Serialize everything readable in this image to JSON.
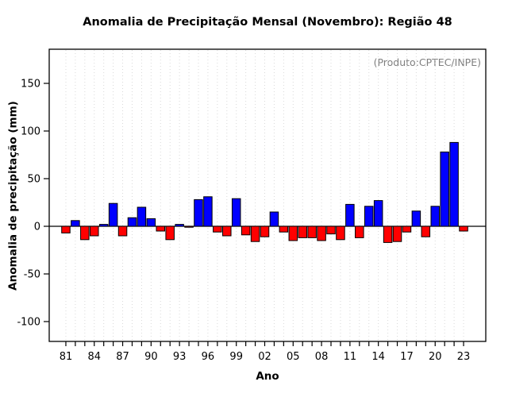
{
  "chart": {
    "title": "Anomalia de Precipitação Mensal (Novembro): Região 48",
    "annotation": "(Produto:CPTEC/INPE)",
    "xlabel": "Ano",
    "ylabel": "Anomalia de precipitação (mm)"
  },
  "chart_data": {
    "type": "bar",
    "title": "Anomalia de Precipitação Mensal (Novembro): Região 48",
    "annotation": "(Produto:CPTEC/INPE)",
    "xlabel": "Ano",
    "ylabel": "Anomalia de precipitação (mm)",
    "years": [
      1981,
      1982,
      1983,
      1984,
      1985,
      1986,
      1987,
      1988,
      1989,
      1990,
      1991,
      1992,
      1993,
      1994,
      1995,
      1996,
      1997,
      1998,
      1999,
      2000,
      2001,
      2002,
      2003,
      2004,
      2005,
      2006,
      2007,
      2008,
      2009,
      2010,
      2011,
      2012,
      2013,
      2014,
      2015,
      2016,
      2017,
      2018,
      2019,
      2020,
      2021,
      2022,
      2023
    ],
    "values": [
      -7,
      6,
      -14,
      -10,
      2,
      24,
      -10,
      9,
      20,
      8,
      -5,
      -14,
      2,
      -1,
      28,
      31,
      -6,
      -10,
      29,
      -9,
      -16,
      -11,
      15,
      -6,
      -15,
      -12,
      -12,
      -15,
      -8,
      -14,
      23,
      -12,
      21,
      27,
      -17,
      -16,
      -6,
      16,
      -11,
      21,
      78,
      88,
      -5
    ],
    "x_tick_labels": [
      "81",
      "",
      "",
      "84",
      "",
      "",
      "87",
      "",
      "",
      "90",
      "",
      "",
      "93",
      "",
      "",
      "96",
      "",
      "",
      "99",
      "",
      "",
      "02",
      "",
      "",
      "05",
      "",
      "",
      "08",
      "",
      "",
      "11",
      "",
      "",
      "14",
      "",
      "",
      "17",
      "",
      "",
      "20",
      "",
      "",
      "23"
    ],
    "x_tick_every": 3,
    "y_ticks": [
      -100,
      -50,
      0,
      50,
      100,
      150
    ],
    "ylim": [
      -120.8,
      185.8
    ],
    "grid": "vertical-dashed",
    "legend": "none",
    "colors": {
      "positive": "#0000ff",
      "negative": "#ff0000",
      "bar_border": "#000000",
      "grid": "#d9d9d9",
      "axis": "#000000",
      "annotation": "#7f7f7f"
    }
  }
}
